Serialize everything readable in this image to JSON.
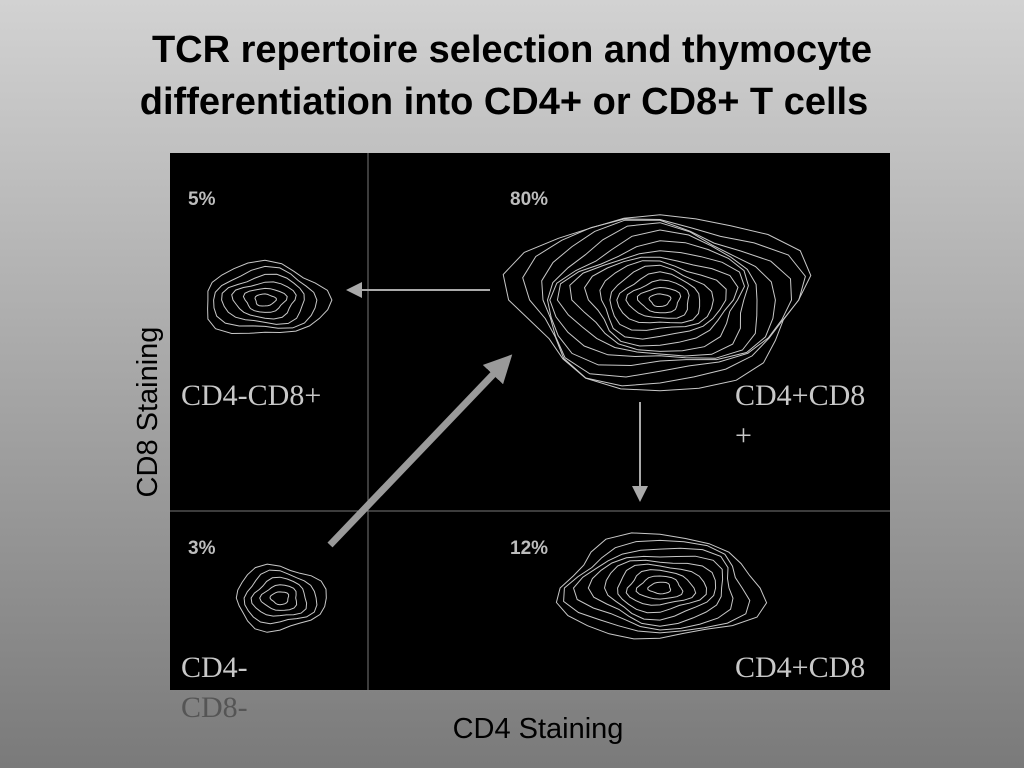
{
  "title": {
    "lines": [
      "TCR repertoire selection and thymocyte",
      "differentiation into CD4+ or  CD8+ T cells"
    ]
  },
  "axes": {
    "y_label": "CD8 Staining",
    "x_label": "CD4 Staining"
  },
  "quadrants": [
    {
      "percent": "5%",
      "label": [
        "CD4-CD8+"
      ]
    },
    {
      "percent": "80%",
      "label": [
        "CD4+CD8",
        "+"
      ]
    },
    {
      "percent": "3%",
      "label": [
        "CD4-",
        "CD8-"
      ]
    },
    {
      "percent": "12%",
      "label": [
        "CD4+CD8"
      ]
    }
  ]
}
